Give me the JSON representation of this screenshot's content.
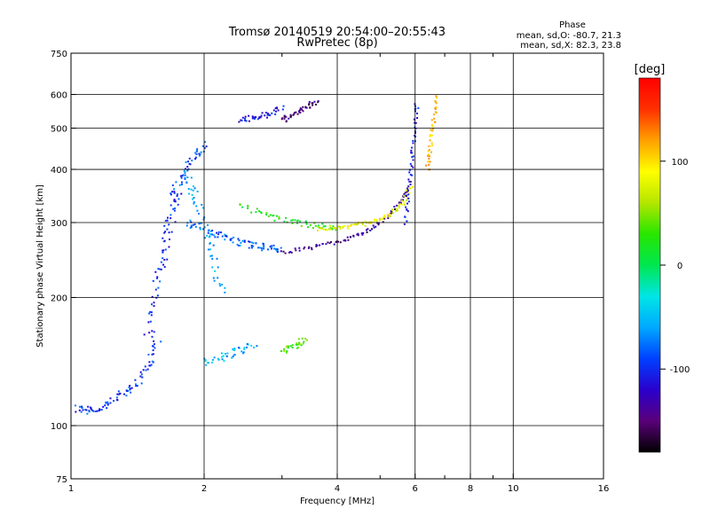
{
  "chart_data": {
    "type": "scatter",
    "title": "Tromsø 20140519 20:54:00–20:55:43",
    "subtitle": "RwPretec (8p)",
    "xlabel": "Frequency [MHz]",
    "ylabel": "Stationary phase Virtual Height [km]",
    "x_scale": "log",
    "y_scale": "log",
    "xlim": [
      1,
      16
    ],
    "ylim": [
      75,
      750
    ],
    "x_ticks": [
      1,
      2,
      4,
      6,
      8,
      10,
      16
    ],
    "x_tick_labels": [
      "1",
      "2",
      "4",
      "6",
      "8",
      "10",
      "16"
    ],
    "x_minor_ticks": [
      3,
      5,
      7,
      9
    ],
    "y_ticks": [
      75,
      100,
      200,
      300,
      400,
      500,
      600,
      750
    ],
    "y_tick_labels": [
      "75",
      "100",
      "200",
      "300",
      "400",
      "500",
      "600",
      "750"
    ],
    "grid": true,
    "phase_stats": {
      "heading": "Phase",
      "o_line": "mean, sd,O: -80.7, 21.3",
      "x_line": "mean, sd,X: 82.3, 23.8"
    },
    "colorbar": {
      "label": "[deg]",
      "range": [
        -180,
        180
      ],
      "ticks": [
        100,
        0,
        -100
      ],
      "tick_labels": [
        "100",
        "0",
        "-100"
      ],
      "colormap": [
        "#000000",
        "#5a007a",
        "#2a00cc",
        "#0040ff",
        "#00a8ff",
        "#00e6e6",
        "#00e650",
        "#28e600",
        "#b4e600",
        "#ffff00",
        "#ffa000",
        "#ff3000",
        "#ff0000"
      ]
    },
    "traces": [
      {
        "f": [
          1.04,
          1.1,
          1.2,
          1.3,
          1.4,
          1.5,
          1.58
        ],
        "h": [
          110,
          108,
          112,
          118,
          125,
          140,
          160
        ],
        "phase": -95,
        "spread": 0.02
      },
      {
        "f": [
          1.5,
          1.55,
          1.6,
          1.65,
          1.7,
          1.75
        ],
        "h": [
          160,
          200,
          240,
          280,
          320,
          360
        ],
        "phase": -100,
        "spread": 0.025
      },
      {
        "f": [
          1.7,
          1.8,
          1.9,
          2.0
        ],
        "h": [
          350,
          390,
          430,
          460
        ],
        "phase": -90,
        "spread": 0.02
      },
      {
        "f": [
          1.8,
          2.0,
          2.2,
          2.4,
          2.6,
          2.8,
          3.0
        ],
        "h": [
          300,
          290,
          280,
          270,
          265,
          262,
          260
        ],
        "phase": -80,
        "spread": 0.02
      },
      {
        "f": [
          1.8,
          1.9,
          2.0,
          2.1,
          2.2
        ],
        "h": [
          400,
          350,
          300,
          250,
          200
        ],
        "phase": -60,
        "spread": 0.025
      },
      {
        "f": [
          2.0,
          2.2,
          2.4,
          2.6
        ],
        "h": [
          140,
          145,
          150,
          155
        ],
        "phase": -55,
        "spread": 0.02
      },
      {
        "f": [
          2.4,
          2.8,
          3.2,
          3.6,
          4.0
        ],
        "h": [
          330,
          310,
          300,
          295,
          292
        ],
        "phase": 20,
        "spread": 0.015
      },
      {
        "f": [
          3.0,
          3.2,
          3.4
        ],
        "h": [
          150,
          155,
          160
        ],
        "phase": 40,
        "spread": 0.02
      },
      {
        "f": [
          3.0,
          3.5,
          4.0,
          4.5,
          5.0,
          5.5,
          5.8
        ],
        "h": [
          255,
          262,
          270,
          280,
          300,
          330,
          360
        ],
        "phase": -140,
        "spread": 0.01
      },
      {
        "f": [
          3.6,
          4.0,
          4.4,
          4.8,
          5.2,
          5.6,
          5.9
        ],
        "h": [
          290,
          292,
          295,
          300,
          310,
          330,
          370
        ],
        "phase": 80,
        "spread": 0.012
      },
      {
        "f": [
          5.7,
          5.8,
          5.9,
          6.0,
          6.05
        ],
        "h": [
          300,
          360,
          420,
          500,
          580
        ],
        "phase": -110,
        "spread": 0.01
      },
      {
        "f": [
          6.4,
          6.5,
          6.6,
          6.7
        ],
        "h": [
          400,
          450,
          520,
          600
        ],
        "phase": 110,
        "spread": 0.01
      },
      {
        "f": [
          2.4,
          2.6,
          2.8,
          3.0
        ],
        "h": [
          520,
          530,
          540,
          560
        ],
        "phase": -110,
        "spread": 0.015
      },
      {
        "f": [
          3.0,
          3.2,
          3.4,
          3.6
        ],
        "h": [
          520,
          540,
          560,
          580
        ],
        "phase": -150,
        "spread": 0.015
      }
    ]
  }
}
